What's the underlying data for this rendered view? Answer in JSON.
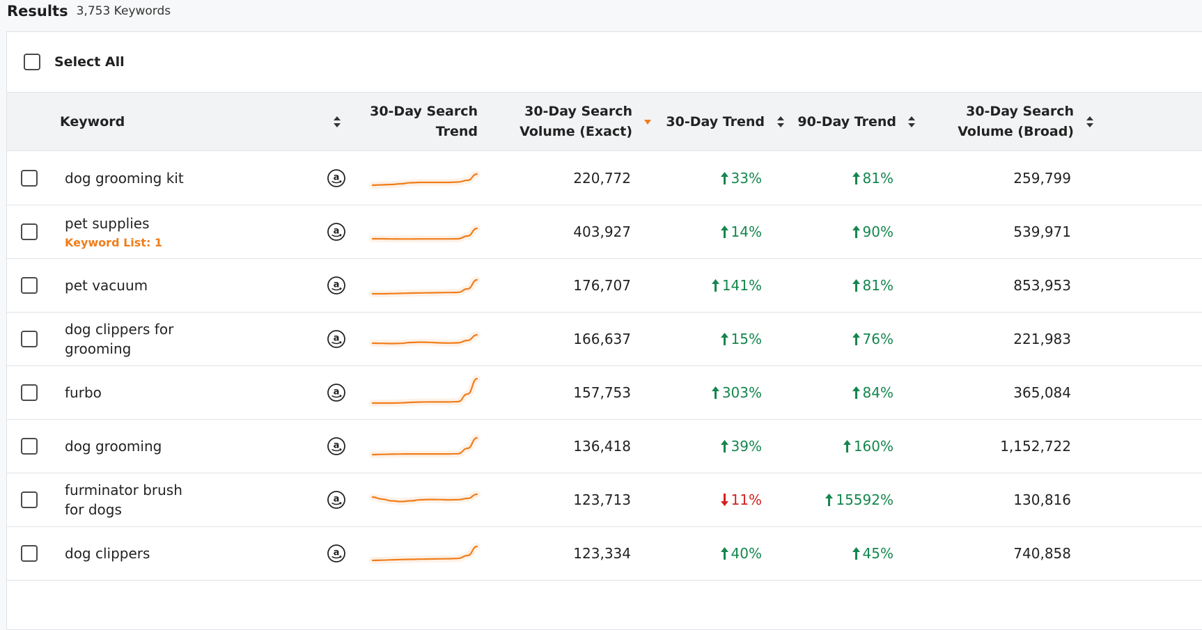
{
  "results": {
    "title": "Results",
    "count": "3,753 Keywords"
  },
  "select_all": {
    "label": "Select All"
  },
  "columns": {
    "keyword": "Keyword",
    "trend_chart": [
      "30-Day Search",
      "Trend"
    ],
    "volume_exact": [
      "30-Day Search",
      "Volume (Exact)"
    ],
    "trend_30": "30-Day Trend",
    "trend_90": "90-Day Trend",
    "volume_broad": [
      "30-Day Search",
      "Volume (Broad)"
    ]
  },
  "colors": {
    "spark": "#f07d1a",
    "up": "#14864d",
    "down": "#d61f1f",
    "sort_active": "#f07d1a"
  },
  "rows": [
    {
      "keyword": [
        "dog grooming kit"
      ],
      "sub": "",
      "exact": "220,772",
      "t30": {
        "dir": "up",
        "value": "33%"
      },
      "t90": {
        "dir": "up",
        "value": "81%"
      },
      "broad": "259,799",
      "spark": [
        10,
        10.5,
        11,
        12,
        13.5,
        14,
        14,
        14,
        14,
        14.5,
        17,
        26
      ]
    },
    {
      "keyword": [
        "pet supplies"
      ],
      "sub": "Keyword List: 1",
      "exact": "403,927",
      "t30": {
        "dir": "up",
        "value": "14%"
      },
      "t90": {
        "dir": "up",
        "value": "90%"
      },
      "broad": "539,971",
      "spark": [
        10,
        10,
        9.8,
        9.7,
        9.7,
        9.8,
        9.8,
        9.8,
        9.8,
        10,
        14,
        25
      ]
    },
    {
      "keyword": [
        "pet vacuum"
      ],
      "sub": "",
      "exact": "176,707",
      "t30": {
        "dir": "up",
        "value": "141%"
      },
      "t90": {
        "dir": "up",
        "value": "81%"
      },
      "broad": "853,953",
      "spark": [
        8,
        8,
        8.3,
        8.6,
        9,
        9.2,
        9.4,
        9.6,
        9.8,
        10,
        15,
        28
      ]
    },
    {
      "keyword": [
        "dog clippers for",
        "grooming"
      ],
      "sub": "",
      "exact": "166,637",
      "t30": {
        "dir": "up",
        "value": "15%"
      },
      "t90": {
        "dir": "up",
        "value": "76%"
      },
      "broad": "221,983",
      "spark": [
        14,
        13.8,
        13.5,
        13.8,
        15,
        15.5,
        15.2,
        14.5,
        14.2,
        14.5,
        18,
        26
      ]
    },
    {
      "keyword": [
        "furbo"
      ],
      "sub": "",
      "exact": "157,753",
      "t30": {
        "dir": "up",
        "value": "303%"
      },
      "t90": {
        "dir": "up",
        "value": "84%"
      },
      "broad": "365,084",
      "spark": [
        5,
        5,
        5,
        5.3,
        6,
        6.5,
        6.6,
        6.6,
        6.6,
        7,
        18,
        40
      ]
    },
    {
      "keyword": [
        "dog grooming"
      ],
      "sub": "",
      "exact": "136,418",
      "t30": {
        "dir": "up",
        "value": "39%"
      },
      "t90": {
        "dir": "up",
        "value": "160%"
      },
      "broad": "1,152,722",
      "spark": [
        8,
        8.3,
        8.6,
        8.8,
        8.9,
        8.9,
        8.9,
        8.9,
        8.9,
        9.2,
        17,
        32
      ]
    },
    {
      "keyword": [
        "furminator brush",
        "for dogs"
      ],
      "sub": "",
      "exact": "123,713",
      "t30": {
        "dir": "down",
        "value": "11%"
      },
      "t90": {
        "dir": "up",
        "value": "15592%"
      },
      "broad": "130,816",
      "spark": [
        24,
        21,
        18.5,
        17.5,
        18.5,
        20,
        20.5,
        20.3,
        20,
        20.2,
        22,
        28
      ]
    },
    {
      "keyword": [
        "dog clippers"
      ],
      "sub": "",
      "exact": "123,334",
      "t30": {
        "dir": "up",
        "value": "40%"
      },
      "t90": {
        "dir": "up",
        "value": "45%"
      },
      "broad": "740,858",
      "spark": [
        10,
        10.3,
        10.8,
        11.2,
        11.5,
        11.8,
        12,
        12.2,
        12.4,
        12.8,
        17,
        30
      ]
    }
  ]
}
